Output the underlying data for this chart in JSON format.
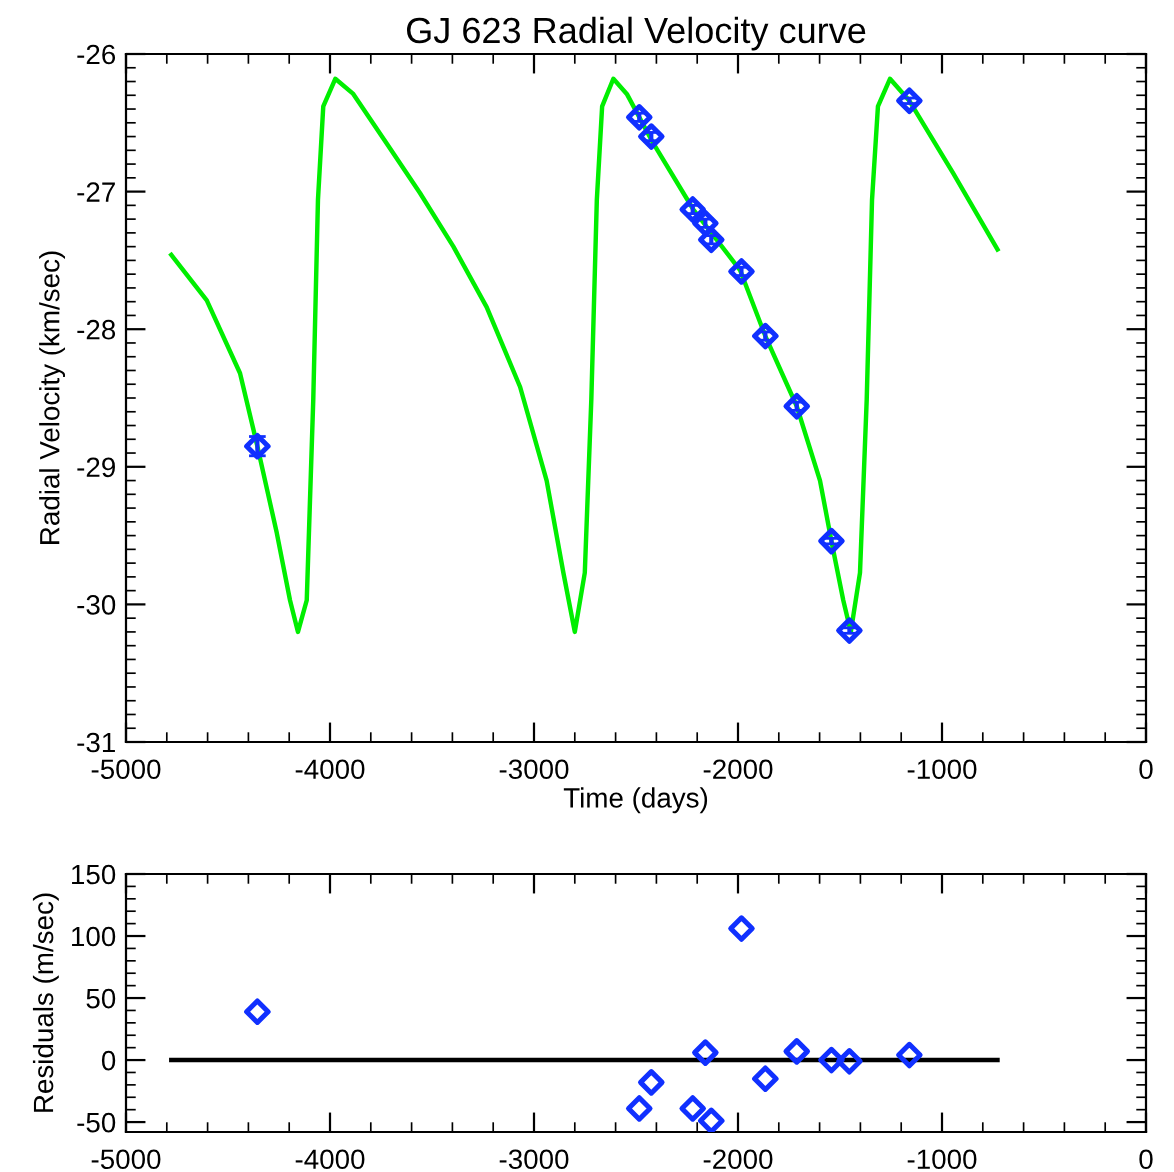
{
  "chart_data": [
    {
      "type": "scatter",
      "title": "GJ 623 Radial Velocity curve",
      "xlabel": "Time (days)",
      "ylabel": "Radial Velocity (km/sec)",
      "xlim": [
        -5000,
        0
      ],
      "xticks": [
        -5000,
        -4000,
        -3000,
        -2000,
        -1000,
        0
      ],
      "ylim": [
        -31,
        -26
      ],
      "yticks": [
        -31,
        -30,
        -29,
        -28,
        -27,
        -26
      ],
      "grid": false,
      "legend": false,
      "series": [
        {
          "type": "line",
          "color": "#00ee00",
          "marker": "none",
          "line_style": "solid",
          "x": [
            -4778,
            -4604,
            -4441,
            -4356,
            -4261,
            -4196,
            -4157,
            -4114,
            -4082,
            -4059,
            -4033,
            -3974,
            -3886,
            -3722,
            -3559,
            -3395,
            -3232,
            -3068,
            -2938,
            -2856,
            -2800,
            -2751,
            -2719,
            -2692,
            -2666,
            -2611,
            -2545,
            -2415,
            -2219,
            -1990,
            -1866,
            -1712,
            -1598,
            -1542,
            -1484,
            -1447,
            -1402,
            -1369,
            -1343,
            -1314,
            -1255,
            -1160,
            -944,
            -728
          ],
          "values": [
            -27.46,
            -27.79,
            -28.32,
            -28.85,
            -29.48,
            -29.97,
            -30.2,
            -29.97,
            -28.51,
            -27.06,
            -26.38,
            -26.18,
            -26.29,
            -26.65,
            -27.01,
            -27.4,
            -27.84,
            -28.42,
            -29.1,
            -29.77,
            -30.2,
            -29.77,
            -28.51,
            -27.06,
            -26.38,
            -26.18,
            -26.29,
            -26.65,
            -27.13,
            -27.57,
            -28.05,
            -28.56,
            -29.1,
            -29.54,
            -29.97,
            -30.2,
            -29.77,
            -28.51,
            -27.06,
            -26.38,
            -26.18,
            -26.34,
            -26.87,
            -27.42
          ]
        },
        {
          "color": "#1030ff",
          "marker": "diamond",
          "x": [
            -4356,
            -2484,
            -2425,
            -2222,
            -2160,
            -2131,
            -1983,
            -1866,
            -1712,
            -1542,
            -1454,
            -1160
          ],
          "values": [
            -28.85,
            -26.46,
            -26.6,
            -27.13,
            -27.23,
            -27.35,
            -27.58,
            -28.05,
            -28.56,
            -29.54,
            -30.19,
            -26.34
          ],
          "errors": [
            0.07,
            0.03,
            0.03,
            0.03,
            0.03,
            0.03,
            0.03,
            0.03,
            0.03,
            0.02,
            0.02,
            0.02
          ]
        }
      ]
    },
    {
      "type": "scatter",
      "ylabel": "Residuals (m/sec)",
      "xlim": [
        -5000,
        0
      ],
      "xticks": [
        -5000,
        -4000,
        -3000,
        -2000,
        -1000,
        0
      ],
      "ylim": [
        -58,
        150
      ],
      "yticks": [
        -50,
        0,
        50,
        100,
        150
      ],
      "grid": false,
      "legend": false,
      "series": [
        {
          "type": "line",
          "color": "#000000",
          "marker": "none",
          "line_style": "solid",
          "x": [
            -4778,
            -728
          ],
          "values": [
            0,
            0
          ]
        },
        {
          "color": "#1030ff",
          "marker": "diamond",
          "x": [
            -4356,
            -2484,
            -2425,
            -2222,
            -2160,
            -2131,
            -1983,
            -1866,
            -1712,
            -1542,
            -1454,
            -1160
          ],
          "values": [
            39,
            -39,
            -18,
            -39,
            6,
            -49,
            106,
            -15,
            7,
            0,
            -1,
            4
          ]
        }
      ]
    }
  ]
}
